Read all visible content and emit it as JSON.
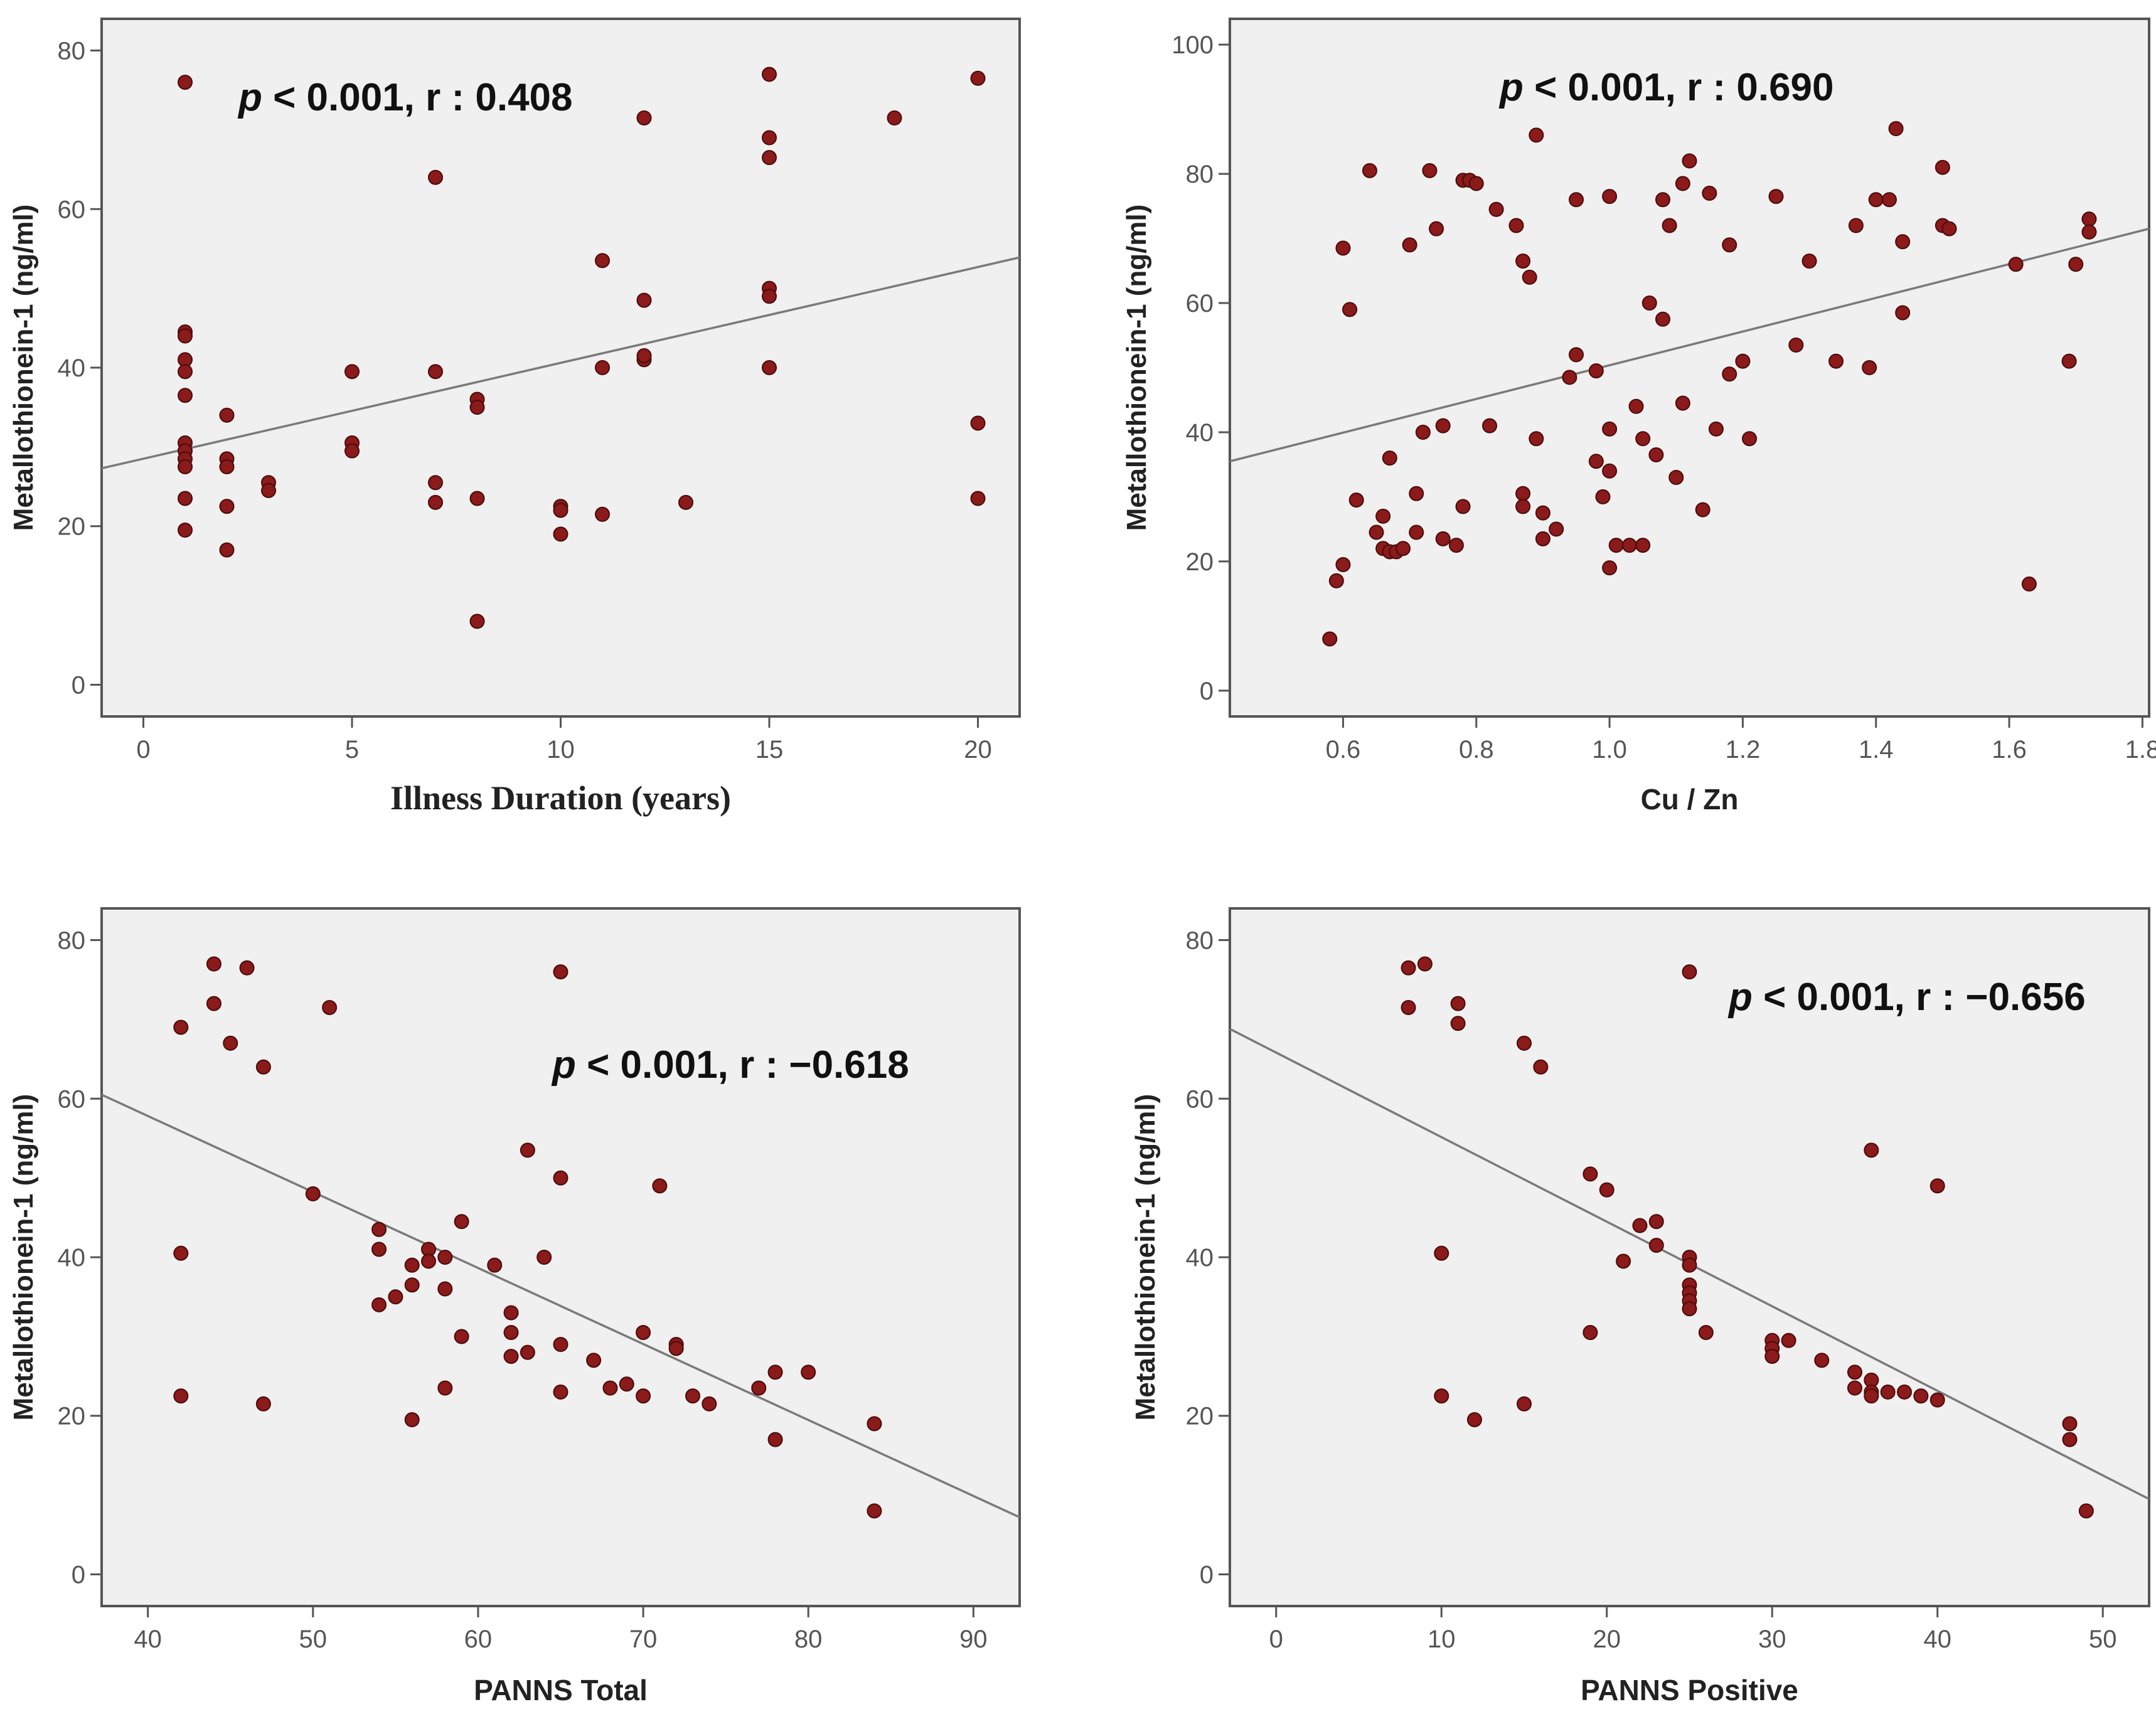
{
  "colors": {
    "plot_background": "#f0f0f0",
    "frame": "#555555",
    "point_fill": "#8b1a1a",
    "point_stroke": "#4a0a0a",
    "fit_line": "#7a7a7a",
    "text": "#222222"
  },
  "chart_data": [
    {
      "id": "illness",
      "type": "scatter",
      "title": "",
      "xlabel": "Illness Duration (years)",
      "xlabel_font": "serif",
      "ylabel": "Metallothionein-1 (ng/ml)",
      "annotation": {
        "p_label": "p",
        "rest": " < 0.001, r : 0.408"
      },
      "xlim": [
        -1,
        21
      ],
      "ylim": [
        -4,
        84
      ],
      "xticks": [
        0,
        5,
        10,
        15,
        20
      ],
      "xtick_labels": [
        "0",
        "5",
        "10",
        "15",
        "20"
      ],
      "yticks": [
        0,
        20,
        40,
        60,
        80
      ],
      "ytick_labels": [
        "0",
        "20",
        "40",
        "60",
        "80"
      ],
      "fit_line": {
        "x": [
          -1,
          21
        ],
        "y": [
          27.3,
          53.9
        ]
      },
      "points": [
        [
          1,
          76
        ],
        [
          1,
          44.5
        ],
        [
          1,
          44
        ],
        [
          1,
          41
        ],
        [
          1,
          39.5
        ],
        [
          1,
          36.5
        ],
        [
          1,
          30.5
        ],
        [
          1,
          29.5
        ],
        [
          1,
          28.5
        ],
        [
          1,
          27.5
        ],
        [
          1,
          23.5
        ],
        [
          1,
          19.5
        ],
        [
          2,
          34
        ],
        [
          2,
          28.5
        ],
        [
          2,
          27.5
        ],
        [
          2,
          22.5
        ],
        [
          2,
          17
        ],
        [
          3,
          25.5
        ],
        [
          3,
          24.5
        ],
        [
          5,
          39.5
        ],
        [
          5,
          30.5
        ],
        [
          5,
          29.5
        ],
        [
          7,
          64
        ],
        [
          7,
          39.5
        ],
        [
          7,
          25.5
        ],
        [
          7,
          23
        ],
        [
          8,
          36
        ],
        [
          8,
          35
        ],
        [
          8,
          23.5
        ],
        [
          8,
          8
        ],
        [
          10,
          22.5
        ],
        [
          10,
          22
        ],
        [
          10,
          19
        ],
        [
          11,
          53.5
        ],
        [
          11,
          40
        ],
        [
          11,
          21.5
        ],
        [
          12,
          71.5
        ],
        [
          12,
          48.5
        ],
        [
          12,
          41
        ],
        [
          12,
          41.5
        ],
        [
          13,
          23
        ],
        [
          15,
          77
        ],
        [
          15,
          69
        ],
        [
          15,
          66.5
        ],
        [
          15,
          50
        ],
        [
          15,
          49
        ],
        [
          15,
          40
        ],
        [
          18,
          71.5
        ],
        [
          20,
          76.5
        ],
        [
          20,
          33
        ],
        [
          20,
          23.5
        ]
      ]
    },
    {
      "id": "cuzn",
      "type": "scatter",
      "title": "",
      "xlabel": "Cu / Zn",
      "xlabel_font": "sans",
      "ylabel": "Metallothionein-1 (ng/ml)",
      "annotation": {
        "p_label": "p",
        "rest": " < 0.001, r : 0.690"
      },
      "xlim": [
        0.43,
        1.81
      ],
      "ylim": [
        -4,
        104
      ],
      "xticks": [
        0.6,
        0.8,
        1.0,
        1.2,
        1.4,
        1.6,
        1.8
      ],
      "xtick_labels": [
        "0.6",
        "0.8",
        "1.0",
        "1.2",
        "1.4",
        "1.6",
        "1.8"
      ],
      "yticks": [
        0,
        20,
        40,
        60,
        80,
        100
      ],
      "ytick_labels": [
        "0",
        "20",
        "40",
        "60",
        "80",
        "100"
      ],
      "fit_line": {
        "x": [
          0.43,
          1.81
        ],
        "y": [
          35.5,
          71.5
        ]
      },
      "points": [
        [
          0.58,
          8
        ],
        [
          0.59,
          17
        ],
        [
          0.6,
          19.5
        ],
        [
          0.6,
          68.5
        ],
        [
          0.61,
          59
        ],
        [
          0.62,
          29.5
        ],
        [
          0.64,
          80.5
        ],
        [
          0.65,
          24.5
        ],
        [
          0.66,
          27
        ],
        [
          0.66,
          22
        ],
        [
          0.67,
          21.5
        ],
        [
          0.67,
          36
        ],
        [
          0.68,
          21.5
        ],
        [
          0.69,
          22
        ],
        [
          0.7,
          69
        ],
        [
          0.71,
          30.5
        ],
        [
          0.71,
          24.5
        ],
        [
          0.72,
          40
        ],
        [
          0.73,
          80.5
        ],
        [
          0.74,
          71.5
        ],
        [
          0.75,
          41
        ],
        [
          0.75,
          23.5
        ],
        [
          0.77,
          22.5
        ],
        [
          0.78,
          28.5
        ],
        [
          0.78,
          79
        ],
        [
          0.79,
          79
        ],
        [
          0.8,
          78.5
        ],
        [
          0.82,
          41
        ],
        [
          0.83,
          74.5
        ],
        [
          0.86,
          72
        ],
        [
          0.87,
          66.5
        ],
        [
          0.87,
          30.5
        ],
        [
          0.87,
          28.5
        ],
        [
          0.88,
          64
        ],
        [
          0.89,
          39
        ],
        [
          0.89,
          86
        ],
        [
          0.9,
          27.5
        ],
        [
          0.9,
          23.5
        ],
        [
          0.92,
          25
        ],
        [
          0.94,
          48.5
        ],
        [
          0.95,
          52
        ],
        [
          0.95,
          76
        ],
        [
          0.98,
          49.5
        ],
        [
          0.98,
          35.5
        ],
        [
          0.99,
          30
        ],
        [
          1.0,
          40.5
        ],
        [
          1.0,
          76.5
        ],
        [
          1.0,
          34
        ],
        [
          1.0,
          19
        ],
        [
          1.01,
          22.5
        ],
        [
          1.03,
          22.5
        ],
        [
          1.04,
          44
        ],
        [
          1.05,
          22.5
        ],
        [
          1.05,
          39
        ],
        [
          1.06,
          60
        ],
        [
          1.07,
          36.5
        ],
        [
          1.08,
          76
        ],
        [
          1.08,
          57.5
        ],
        [
          1.09,
          72
        ],
        [
          1.1,
          33
        ],
        [
          1.11,
          78.5
        ],
        [
          1.11,
          44.5
        ],
        [
          1.12,
          82
        ],
        [
          1.14,
          28
        ],
        [
          1.15,
          77
        ],
        [
          1.16,
          40.5
        ],
        [
          1.18,
          49
        ],
        [
          1.18,
          69
        ],
        [
          1.2,
          51
        ],
        [
          1.21,
          39
        ],
        [
          1.25,
          76.5
        ],
        [
          1.28,
          53.5
        ],
        [
          1.3,
          66.5
        ],
        [
          1.34,
          51
        ],
        [
          1.37,
          72
        ],
        [
          1.39,
          50
        ],
        [
          1.4,
          76
        ],
        [
          1.42,
          76
        ],
        [
          1.43,
          87
        ],
        [
          1.44,
          58.5
        ],
        [
          1.44,
          69.5
        ],
        [
          1.5,
          72
        ],
        [
          1.5,
          81
        ],
        [
          1.51,
          71.5
        ],
        [
          1.61,
          66
        ],
        [
          1.63,
          16.5
        ],
        [
          1.69,
          51
        ],
        [
          1.7,
          66
        ],
        [
          1.72,
          73
        ],
        [
          1.72,
          71
        ]
      ]
    },
    {
      "id": "total",
      "type": "scatter",
      "title": "",
      "xlabel": "PANNS Total",
      "xlabel_font": "sans",
      "ylabel": "Metallothionein-1 (ng/ml)",
      "annotation": {
        "p_label": "p",
        "rest": " < 0.001, r : −0.618"
      },
      "xlim": [
        37.2,
        92.8
      ],
      "ylim": [
        -4,
        84
      ],
      "xticks": [
        40,
        50,
        60,
        70,
        80,
        90
      ],
      "xtick_labels": [
        "40",
        "50",
        "60",
        "70",
        "80",
        "90"
      ],
      "yticks": [
        0,
        20,
        40,
        60,
        80
      ],
      "ytick_labels": [
        "0",
        "20",
        "40",
        "60",
        "80"
      ],
      "fit_line": {
        "x": [
          37.2,
          92.8
        ],
        "y": [
          60.5,
          7.2
        ]
      },
      "points": [
        [
          42,
          69
        ],
        [
          42,
          40.5
        ],
        [
          42,
          22.5
        ],
        [
          44,
          77
        ],
        [
          44,
          72
        ],
        [
          45,
          67
        ],
        [
          46,
          76.5
        ],
        [
          47,
          64
        ],
        [
          47,
          21.5
        ],
        [
          50,
          48
        ],
        [
          51,
          71.5
        ],
        [
          54,
          43.5
        ],
        [
          54,
          41
        ],
        [
          54,
          34
        ],
        [
          55,
          35
        ],
        [
          56,
          39
        ],
        [
          56,
          36.5
        ],
        [
          56,
          19.5
        ],
        [
          57,
          41
        ],
        [
          57,
          39.5
        ],
        [
          58,
          40
        ],
        [
          58,
          36
        ],
        [
          58,
          23.5
        ],
        [
          59,
          44.5
        ],
        [
          59,
          30
        ],
        [
          61,
          39
        ],
        [
          62,
          33
        ],
        [
          62,
          30.5
        ],
        [
          62,
          27.5
        ],
        [
          63,
          53.5
        ],
        [
          63,
          28
        ],
        [
          64,
          40
        ],
        [
          65,
          76
        ],
        [
          65,
          50
        ],
        [
          65,
          29
        ],
        [
          65,
          23
        ],
        [
          67,
          27
        ],
        [
          68,
          23.5
        ],
        [
          69,
          24
        ],
        [
          70,
          30.5
        ],
        [
          70,
          22.5
        ],
        [
          71,
          49
        ],
        [
          72,
          29
        ],
        [
          72,
          28.5
        ],
        [
          73,
          22.5
        ],
        [
          74,
          21.5
        ],
        [
          77,
          23.5
        ],
        [
          78,
          25.5
        ],
        [
          78,
          17
        ],
        [
          80,
          25.5
        ],
        [
          84,
          19
        ],
        [
          84,
          8
        ]
      ]
    },
    {
      "id": "positive",
      "type": "scatter",
      "title": "",
      "xlabel": "PANNS Positive",
      "xlabel_font": "sans",
      "ylabel": "Metallothionein-1 (ng/ml)",
      "annotation": {
        "p_label": "p",
        "rest": " < 0.001, r : −0.656"
      },
      "xlim": [
        -2.8,
        52.8
      ],
      "ylim": [
        -4,
        84
      ],
      "xticks": [
        0,
        10,
        20,
        30,
        40,
        50
      ],
      "xtick_labels": [
        "0",
        "10",
        "20",
        "30",
        "40",
        "50"
      ],
      "yticks": [
        0,
        20,
        40,
        60,
        80
      ],
      "ytick_labels": [
        "0",
        "20",
        "40",
        "60",
        "80"
      ],
      "fit_line": {
        "x": [
          -2.8,
          52.8
        ],
        "y": [
          68.8,
          9.5
        ]
      },
      "points": [
        [
          8,
          76.5
        ],
        [
          8,
          71.5
        ],
        [
          9,
          77
        ],
        [
          10,
          40.5
        ],
        [
          10,
          22.5
        ],
        [
          11,
          72
        ],
        [
          11,
          69.5
        ],
        [
          12,
          19.5
        ],
        [
          15,
          67
        ],
        [
          15,
          21.5
        ],
        [
          16,
          64
        ],
        [
          19,
          50.5
        ],
        [
          19,
          30.5
        ],
        [
          20,
          48.5
        ],
        [
          21,
          39.5
        ],
        [
          22,
          44
        ],
        [
          23,
          44.5
        ],
        [
          23,
          41.5
        ],
        [
          25,
          76
        ],
        [
          25,
          40
        ],
        [
          25,
          39
        ],
        [
          25,
          36.5
        ],
        [
          25,
          35.5
        ],
        [
          25,
          34.5
        ],
        [
          25,
          33.5
        ],
        [
          26,
          30.5
        ],
        [
          30,
          29.5
        ],
        [
          30,
          28.5
        ],
        [
          30,
          27.5
        ],
        [
          31,
          29.5
        ],
        [
          33,
          27
        ],
        [
          35,
          25.5
        ],
        [
          35,
          23.5
        ],
        [
          36,
          53.5
        ],
        [
          36,
          24.5
        ],
        [
          36,
          23
        ],
        [
          36,
          22.5
        ],
        [
          37,
          23
        ],
        [
          38,
          23
        ],
        [
          39,
          22.5
        ],
        [
          40,
          49
        ],
        [
          40,
          22
        ],
        [
          48,
          19
        ],
        [
          48,
          17
        ],
        [
          49,
          8
        ]
      ]
    }
  ]
}
